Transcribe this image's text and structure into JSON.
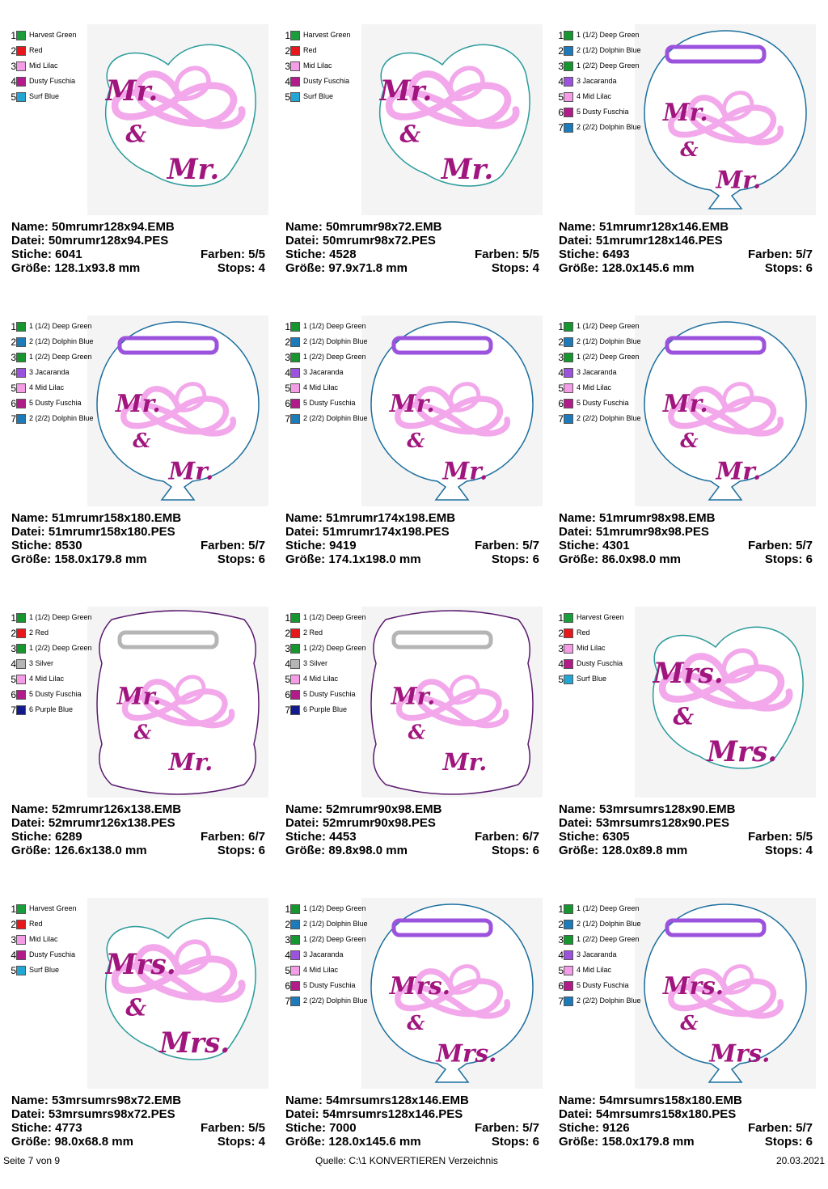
{
  "designs": [
    {
      "shape": "mr-sticker",
      "name": "Name: 50mrumr128x94.EMB",
      "file": "Datei: 50mrumr128x94.PES",
      "stitches": "Stiche: 6041",
      "colors_count": "Farben: 5/5",
      "size": "Größe: 128.1x93.8 mm",
      "stops": "Stops: 4",
      "colors": [
        {
          "num": "1",
          "name": "Harvest Green",
          "hex": "#1a9e3c"
        },
        {
          "num": "2",
          "name": "Red",
          "hex": "#e8171b"
        },
        {
          "num": "3",
          "name": "Mid Lilac",
          "hex": "#f49ce6"
        },
        {
          "num": "4",
          "name": "Dusty Fuschia",
          "hex": "#b21b8a"
        },
        {
          "num": "5",
          "name": "Surf Blue",
          "hex": "#23a6d4"
        }
      ]
    },
    {
      "shape": "mr-sticker",
      "name": "Name: 50mrumr98x72.EMB",
      "file": "Datei: 50mrumr98x72.PES",
      "stitches": "Stiche: 4528",
      "colors_count": "Farben: 5/5",
      "size": "Größe: 97.9x71.8 mm",
      "stops": "Stops: 4",
      "colors": [
        {
          "num": "1",
          "name": "Harvest Green",
          "hex": "#1a9e3c"
        },
        {
          "num": "2",
          "name": "Red",
          "hex": "#e8171b"
        },
        {
          "num": "3",
          "name": "Mid Lilac",
          "hex": "#f49ce6"
        },
        {
          "num": "4",
          "name": "Dusty Fuschia",
          "hex": "#b21b8a"
        },
        {
          "num": "5",
          "name": "Surf Blue",
          "hex": "#23a6d4"
        }
      ]
    },
    {
      "shape": "mr-balloon",
      "name": "Name: 51mrumr128x146.EMB",
      "file": "Datei: 51mrumr128x146.PES",
      "stitches": "Stiche: 6493",
      "colors_count": "Farben: 5/7",
      "size": "Größe: 128.0x145.6 mm",
      "stops": "Stops: 6",
      "colors": [
        {
          "num": "1",
          "name": "1 (1/2) Deep Green",
          "hex": "#17952f"
        },
        {
          "num": "2",
          "name": "2 (1/2) Dolphin Blue",
          "hex": "#1c7bb8"
        },
        {
          "num": "3",
          "name": "1 (2/2) Deep Green",
          "hex": "#17952f"
        },
        {
          "num": "4",
          "name": "3 Jacaranda",
          "hex": "#9b52dc"
        },
        {
          "num": "5",
          "name": "4 Mid Lilac",
          "hex": "#f49ce6"
        },
        {
          "num": "6",
          "name": "5 Dusty Fuschia",
          "hex": "#b21b8a"
        },
        {
          "num": "7",
          "name": "2 (2/2) Dolphin Blue",
          "hex": "#1c7bb8"
        }
      ]
    },
    {
      "shape": "mr-balloon",
      "name": "Name: 51mrumr158x180.EMB",
      "file": "Datei: 51mrumr158x180.PES",
      "stitches": "Stiche: 8530",
      "colors_count": "Farben: 5/7",
      "size": "Größe: 158.0x179.8 mm",
      "stops": "Stops: 6",
      "colors": [
        {
          "num": "1",
          "name": "1 (1/2) Deep Green",
          "hex": "#17952f"
        },
        {
          "num": "2",
          "name": "2 (1/2) Dolphin Blue",
          "hex": "#1c7bb8"
        },
        {
          "num": "3",
          "name": "1 (2/2) Deep Green",
          "hex": "#17952f"
        },
        {
          "num": "4",
          "name": "3 Jacaranda",
          "hex": "#9b52dc"
        },
        {
          "num": "5",
          "name": "4 Mid Lilac",
          "hex": "#f49ce6"
        },
        {
          "num": "6",
          "name": "5 Dusty Fuschia",
          "hex": "#b21b8a"
        },
        {
          "num": "7",
          "name": "2 (2/2) Dolphin Blue",
          "hex": "#1c7bb8"
        }
      ]
    },
    {
      "shape": "mr-balloon",
      "name": "Name: 51mrumr174x198.EMB",
      "file": "Datei: 51mrumr174x198.PES",
      "stitches": "Stiche: 9419",
      "colors_count": "Farben: 5/7",
      "size": "Größe: 174.1x198.0 mm",
      "stops": "Stops: 6",
      "colors": [
        {
          "num": "1",
          "name": "1 (1/2) Deep Green",
          "hex": "#17952f"
        },
        {
          "num": "2",
          "name": "2 (1/2) Dolphin Blue",
          "hex": "#1c7bb8"
        },
        {
          "num": "3",
          "name": "1 (2/2) Deep Green",
          "hex": "#17952f"
        },
        {
          "num": "4",
          "name": "3 Jacaranda",
          "hex": "#9b52dc"
        },
        {
          "num": "5",
          "name": "4 Mid Lilac",
          "hex": "#f49ce6"
        },
        {
          "num": "6",
          "name": "5 Dusty Fuschia",
          "hex": "#b21b8a"
        },
        {
          "num": "7",
          "name": "2 (2/2) Dolphin Blue",
          "hex": "#1c7bb8"
        }
      ]
    },
    {
      "shape": "mr-balloon",
      "name": "Name: 51mrumr98x98.EMB",
      "file": "Datei: 51mrumr98x98.PES",
      "stitches": "Stiche: 4301",
      "colors_count": "Farben: 5/7",
      "size": "Größe: 86.0x98.0 mm",
      "stops": "Stops: 6",
      "colors": [
        {
          "num": "1",
          "name": "1 (1/2) Deep Green",
          "hex": "#17952f"
        },
        {
          "num": "2",
          "name": "2 (1/2) Dolphin Blue",
          "hex": "#1c7bb8"
        },
        {
          "num": "3",
          "name": "1 (2/2) Deep Green",
          "hex": "#17952f"
        },
        {
          "num": "4",
          "name": "3 Jacaranda",
          "hex": "#9b52dc"
        },
        {
          "num": "5",
          "name": "4 Mid Lilac",
          "hex": "#f49ce6"
        },
        {
          "num": "6",
          "name": "5 Dusty Fuschia",
          "hex": "#b21b8a"
        },
        {
          "num": "7",
          "name": "2 (2/2) Dolphin Blue",
          "hex": "#1c7bb8"
        }
      ]
    },
    {
      "shape": "mr-frame",
      "name": "Name: 52mrumr126x138.EMB",
      "file": "Datei: 52mrumr126x138.PES",
      "stitches": "Stiche: 6289",
      "colors_count": "Farben: 6/7",
      "size": "Größe: 126.6x138.0 mm",
      "stops": "Stops: 6",
      "colors": [
        {
          "num": "1",
          "name": "1 (1/2) Deep Green",
          "hex": "#17952f"
        },
        {
          "num": "2",
          "name": "2 Red",
          "hex": "#e8171b"
        },
        {
          "num": "3",
          "name": "1 (2/2) Deep Green",
          "hex": "#17952f"
        },
        {
          "num": "4",
          "name": "3 Silver",
          "hex": "#b5b5b5"
        },
        {
          "num": "5",
          "name": "4 Mid Lilac",
          "hex": "#f49ce6"
        },
        {
          "num": "6",
          "name": "5 Dusty Fuschia",
          "hex": "#b21b8a"
        },
        {
          "num": "7",
          "name": "6 Purple Blue",
          "hex": "#131b8c"
        }
      ]
    },
    {
      "shape": "mr-frame",
      "name": "Name: 52mrumr90x98.EMB",
      "file": "Datei: 52mrumr90x98.PES",
      "stitches": "Stiche: 4453",
      "colors_count": "Farben: 6/7",
      "size": "Größe: 89.8x98.0 mm",
      "stops": "Stops: 6",
      "colors": [
        {
          "num": "1",
          "name": "1 (1/2) Deep Green",
          "hex": "#17952f"
        },
        {
          "num": "2",
          "name": "2 Red",
          "hex": "#e8171b"
        },
        {
          "num": "3",
          "name": "1 (2/2) Deep Green",
          "hex": "#17952f"
        },
        {
          "num": "4",
          "name": "3 Silver",
          "hex": "#b5b5b5"
        },
        {
          "num": "5",
          "name": "4 Mid Lilac",
          "hex": "#f49ce6"
        },
        {
          "num": "6",
          "name": "5 Dusty Fuschia",
          "hex": "#b21b8a"
        },
        {
          "num": "7",
          "name": "6 Purple Blue",
          "hex": "#131b8c"
        }
      ]
    },
    {
      "shape": "mrs-sticker",
      "name": "Name: 53mrsumrs128x90.EMB",
      "file": "Datei: 53mrsumrs128x90.PES",
      "stitches": "Stiche: 6305",
      "colors_count": "Farben: 5/5",
      "size": "Größe: 128.0x89.8 mm",
      "stops": "Stops: 4",
      "colors": [
        {
          "num": "1",
          "name": "Harvest Green",
          "hex": "#1a9e3c"
        },
        {
          "num": "2",
          "name": "Red",
          "hex": "#e8171b"
        },
        {
          "num": "3",
          "name": "Mid Lilac",
          "hex": "#f49ce6"
        },
        {
          "num": "4",
          "name": "Dusty Fuschia",
          "hex": "#b21b8a"
        },
        {
          "num": "5",
          "name": "Surf Blue",
          "hex": "#23a6d4"
        }
      ]
    },
    {
      "shape": "mrs-sticker",
      "name": "Name: 53mrsumrs98x72.EMB",
      "file": "Datei: 53mrsumrs98x72.PES",
      "stitches": "Stiche: 4773",
      "colors_count": "Farben: 5/5",
      "size": "Größe: 98.0x68.8 mm",
      "stops": "Stops: 4",
      "colors": [
        {
          "num": "1",
          "name": "Harvest Green",
          "hex": "#1a9e3c"
        },
        {
          "num": "2",
          "name": "Red",
          "hex": "#e8171b"
        },
        {
          "num": "3",
          "name": "Mid Lilac",
          "hex": "#f49ce6"
        },
        {
          "num": "4",
          "name": "Dusty Fuschia",
          "hex": "#b21b8a"
        },
        {
          "num": "5",
          "name": "Surf Blue",
          "hex": "#23a6d4"
        }
      ]
    },
    {
      "shape": "mrs-balloon",
      "name": "Name: 54mrsumrs128x146.EMB",
      "file": "Datei: 54mrsumrs128x146.PES",
      "stitches": "Stiche: 7000",
      "colors_count": "Farben: 5/7",
      "size": "Größe: 128.0x145.6 mm",
      "stops": "Stops: 6",
      "colors": [
        {
          "num": "1",
          "name": "1 (1/2) Deep Green",
          "hex": "#17952f"
        },
        {
          "num": "2",
          "name": "2 (1/2) Dolphin Blue",
          "hex": "#1c7bb8"
        },
        {
          "num": "3",
          "name": "1 (2/2) Deep Green",
          "hex": "#17952f"
        },
        {
          "num": "4",
          "name": "3 Jacaranda",
          "hex": "#9b52dc"
        },
        {
          "num": "5",
          "name": "4 Mid Lilac",
          "hex": "#f49ce6"
        },
        {
          "num": "6",
          "name": "5 Dusty Fuschia",
          "hex": "#b21b8a"
        },
        {
          "num": "7",
          "name": "2 (2/2) Dolphin Blue",
          "hex": "#1c7bb8"
        }
      ]
    },
    {
      "shape": "mrs-balloon",
      "name": "Name: 54mrsumrs158x180.EMB",
      "file": "Datei: 54mrsumrs158x180.PES",
      "stitches": "Stiche: 9126",
      "colors_count": "Farben: 5/7",
      "size": "Größe: 158.0x179.8 mm",
      "stops": "Stops: 6",
      "colors": [
        {
          "num": "1",
          "name": "1 (1/2) Deep Green",
          "hex": "#17952f"
        },
        {
          "num": "2",
          "name": "2 (1/2) Dolphin Blue",
          "hex": "#1c7bb8"
        },
        {
          "num": "3",
          "name": "1 (2/2) Deep Green",
          "hex": "#17952f"
        },
        {
          "num": "4",
          "name": "3 Jacaranda",
          "hex": "#9b52dc"
        },
        {
          "num": "5",
          "name": "4 Mid Lilac",
          "hex": "#f49ce6"
        },
        {
          "num": "6",
          "name": "5 Dusty Fuschia",
          "hex": "#b21b8a"
        },
        {
          "num": "7",
          "name": "2 (2/2) Dolphin Blue",
          "hex": "#1c7bb8"
        }
      ]
    }
  ],
  "footer": {
    "page": "Seite 7 von 9",
    "source": "Quelle: C:\\1 KONVERTIEREN Verzeichnis",
    "date": "20.03.2021"
  }
}
